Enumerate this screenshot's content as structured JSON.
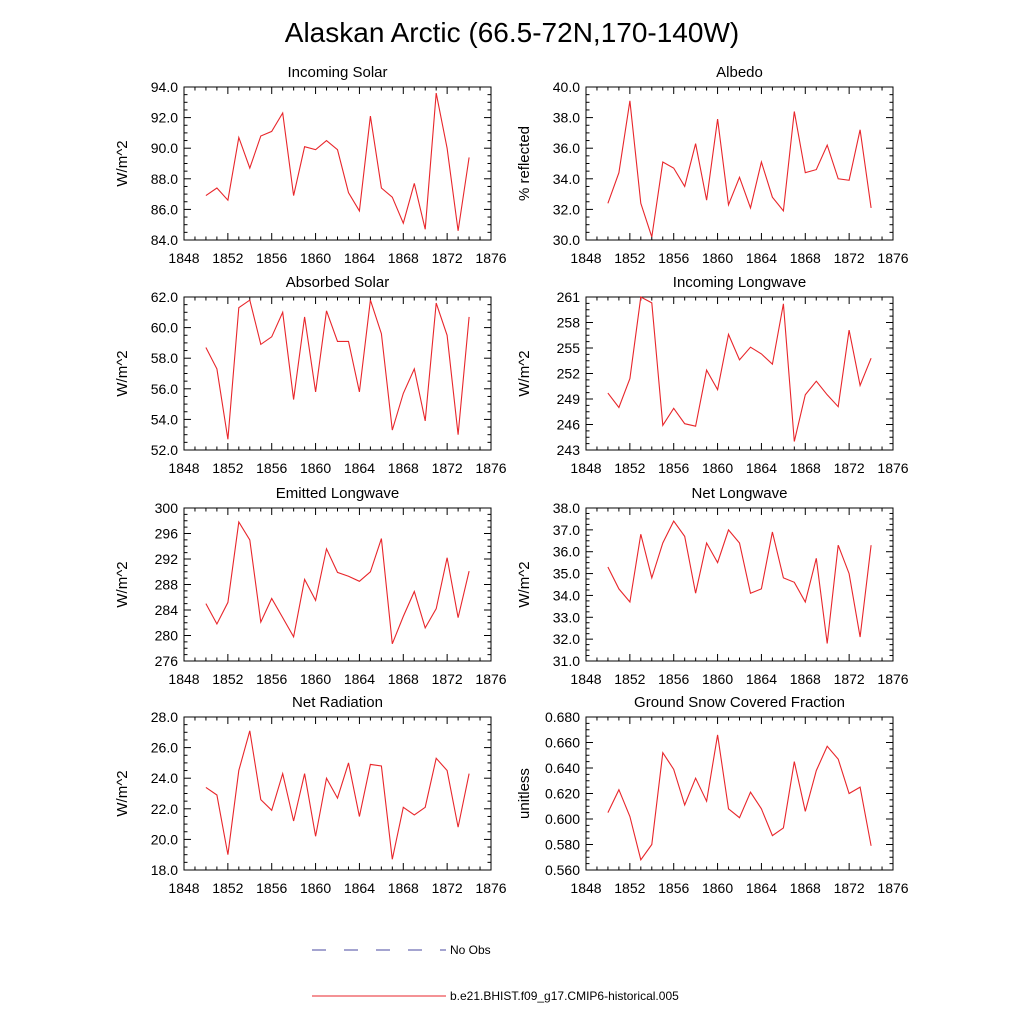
{
  "title": "Alaskan Arctic (66.5-72N,170-140W)",
  "legend": {
    "entries": [
      {
        "label": "No Obs",
        "style": "dashed",
        "color": "#4a4aa0"
      },
      {
        "label": "b.e21.BHIST.f09_g17.CMIP6-historical.005",
        "style": "solid",
        "color": "#e8262b"
      }
    ]
  },
  "chart_data": [
    {
      "type": "line",
      "title": "Incoming Solar",
      "ylabel": "W/m^2",
      "xlim": [
        1848,
        1876
      ],
      "xticks": [
        1848,
        1852,
        1856,
        1860,
        1864,
        1868,
        1872,
        1876
      ],
      "ylim": [
        84,
        94
      ],
      "yticks": [
        "84.0",
        "86.0",
        "88.0",
        "90.0",
        "92.0",
        "94.0"
      ],
      "x": [
        1850,
        1851,
        1852,
        1853,
        1854,
        1855,
        1856,
        1857,
        1858,
        1859,
        1860,
        1861,
        1862,
        1863,
        1864,
        1865,
        1866,
        1867,
        1868,
        1869,
        1870,
        1871,
        1872,
        1873,
        1874
      ],
      "values": [
        86.9,
        87.4,
        86.6,
        90.7,
        88.7,
        90.8,
        91.1,
        92.3,
        86.9,
        90.1,
        89.9,
        90.5,
        89.9,
        87.1,
        85.9,
        92.1,
        87.4,
        86.8,
        85.1,
        87.7,
        84.7,
        93.6,
        90.0,
        84.6,
        89.4
      ],
      "color": "#e8262b"
    },
    {
      "type": "line",
      "title": "Albedo",
      "ylabel": "% reflected",
      "xlim": [
        1848,
        1876
      ],
      "xticks": [
        1848,
        1852,
        1856,
        1860,
        1864,
        1868,
        1872,
        1876
      ],
      "ylim": [
        30,
        40
      ],
      "yticks": [
        "30.0",
        "32.0",
        "34.0",
        "36.0",
        "38.0",
        "40.0"
      ],
      "x": [
        1850,
        1851,
        1852,
        1853,
        1854,
        1855,
        1856,
        1857,
        1858,
        1859,
        1860,
        1861,
        1862,
        1863,
        1864,
        1865,
        1866,
        1867,
        1868,
        1869,
        1870,
        1871,
        1872,
        1873,
        1874
      ],
      "values": [
        32.4,
        34.4,
        39.1,
        32.4,
        30.2,
        35.1,
        34.7,
        33.5,
        36.3,
        32.6,
        37.9,
        32.3,
        34.1,
        32.1,
        35.1,
        32.8,
        31.9,
        38.4,
        34.4,
        34.6,
        36.2,
        34.0,
        33.9,
        37.2,
        32.1
      ],
      "color": "#e8262b"
    },
    {
      "type": "line",
      "title": "Absorbed Solar",
      "ylabel": "W/m^2",
      "xlim": [
        1848,
        1876
      ],
      "xticks": [
        1848,
        1852,
        1856,
        1860,
        1864,
        1868,
        1872,
        1876
      ],
      "ylim": [
        52,
        62
      ],
      "yticks": [
        "52.0",
        "54.0",
        "56.0",
        "58.0",
        "60.0",
        "62.0"
      ],
      "x": [
        1850,
        1851,
        1852,
        1853,
        1854,
        1855,
        1856,
        1857,
        1858,
        1859,
        1860,
        1861,
        1862,
        1863,
        1864,
        1865,
        1866,
        1867,
        1868,
        1869,
        1870,
        1871,
        1872,
        1873,
        1874
      ],
      "values": [
        58.7,
        57.3,
        52.7,
        61.3,
        61.8,
        58.9,
        59.4,
        61.0,
        55.3,
        60.7,
        55.8,
        61.1,
        59.1,
        59.1,
        55.8,
        61.8,
        59.6,
        53.3,
        55.7,
        57.3,
        53.9,
        61.6,
        59.5,
        53.0,
        60.7
      ],
      "color": "#e8262b"
    },
    {
      "type": "line",
      "title": "Incoming Longwave",
      "ylabel": "W/m^2",
      "xlim": [
        1848,
        1876
      ],
      "xticks": [
        1848,
        1852,
        1856,
        1860,
        1864,
        1868,
        1872,
        1876
      ],
      "ylim": [
        243,
        261
      ],
      "yticks": [
        "243",
        "246",
        "249",
        "252",
        "255",
        "258",
        "261"
      ],
      "x": [
        1850,
        1851,
        1852,
        1853,
        1854,
        1855,
        1856,
        1857,
        1858,
        1859,
        1860,
        1861,
        1862,
        1863,
        1864,
        1865,
        1866,
        1867,
        1868,
        1869,
        1870,
        1871,
        1872,
        1873,
        1874
      ],
      "values": [
        249.7,
        248.0,
        251.4,
        261.0,
        260.3,
        245.9,
        247.9,
        246.1,
        245.8,
        252.4,
        250.1,
        256.6,
        253.6,
        255.1,
        254.3,
        253.1,
        260.2,
        244.0,
        249.5,
        251.1,
        249.5,
        248.1,
        257.1,
        250.6,
        253.8
      ],
      "color": "#e8262b"
    },
    {
      "type": "line",
      "title": "Emitted Longwave",
      "ylabel": "W/m^2",
      "xlim": [
        1848,
        1876
      ],
      "xticks": [
        1848,
        1852,
        1856,
        1860,
        1864,
        1868,
        1872,
        1876
      ],
      "ylim": [
        276,
        300
      ],
      "yticks": [
        "276",
        "280",
        "284",
        "288",
        "292",
        "296",
        "300"
      ],
      "x": [
        1850,
        1851,
        1852,
        1853,
        1854,
        1855,
        1856,
        1857,
        1858,
        1859,
        1860,
        1861,
        1862,
        1863,
        1864,
        1865,
        1866,
        1867,
        1868,
        1869,
        1870,
        1871,
        1872,
        1873,
        1874
      ],
      "values": [
        285.0,
        281.8,
        285.2,
        297.8,
        295.0,
        282.1,
        285.8,
        282.8,
        279.8,
        288.8,
        285.5,
        293.6,
        289.9,
        289.3,
        288.5,
        290.0,
        295.2,
        278.7,
        283.0,
        286.9,
        281.2,
        284.2,
        292.2,
        282.8,
        290.1
      ],
      "color": "#e8262b"
    },
    {
      "type": "line",
      "title": "Net Longwave",
      "ylabel": "W/m^2",
      "xlim": [
        1848,
        1876
      ],
      "xticks": [
        1848,
        1852,
        1856,
        1860,
        1864,
        1868,
        1872,
        1876
      ],
      "ylim": [
        31,
        38
      ],
      "yticks": [
        "31.0",
        "32.0",
        "33.0",
        "34.0",
        "35.0",
        "36.0",
        "37.0",
        "38.0"
      ],
      "x": [
        1850,
        1851,
        1852,
        1853,
        1854,
        1855,
        1856,
        1857,
        1858,
        1859,
        1860,
        1861,
        1862,
        1863,
        1864,
        1865,
        1866,
        1867,
        1868,
        1869,
        1870,
        1871,
        1872,
        1873,
        1874
      ],
      "values": [
        35.3,
        34.3,
        33.7,
        36.8,
        34.8,
        36.4,
        37.4,
        36.7,
        34.1,
        36.4,
        35.5,
        37.0,
        36.4,
        34.1,
        34.3,
        36.9,
        34.8,
        34.6,
        33.7,
        35.7,
        31.8,
        36.3,
        35.0,
        32.1,
        36.3
      ],
      "color": "#e8262b"
    },
    {
      "type": "line",
      "title": "Net Radiation",
      "ylabel": "W/m^2",
      "xlim": [
        1848,
        1876
      ],
      "xticks": [
        1848,
        1852,
        1856,
        1860,
        1864,
        1868,
        1872,
        1876
      ],
      "ylim": [
        18,
        28
      ],
      "yticks": [
        "18.0",
        "20.0",
        "22.0",
        "24.0",
        "26.0",
        "28.0"
      ],
      "x": [
        1850,
        1851,
        1852,
        1853,
        1854,
        1855,
        1856,
        1857,
        1858,
        1859,
        1860,
        1861,
        1862,
        1863,
        1864,
        1865,
        1866,
        1867,
        1868,
        1869,
        1870,
        1871,
        1872,
        1873,
        1874
      ],
      "values": [
        23.4,
        22.9,
        19.0,
        24.5,
        27.1,
        22.6,
        21.9,
        24.3,
        21.2,
        24.3,
        20.2,
        24.0,
        22.7,
        25.0,
        21.5,
        24.9,
        24.8,
        18.7,
        22.1,
        21.6,
        22.1,
        25.3,
        24.5,
        20.8,
        24.3
      ],
      "color": "#e8262b"
    },
    {
      "type": "line",
      "title": "Ground Snow Covered Fraction",
      "ylabel": "unitless",
      "xlim": [
        1848,
        1876
      ],
      "xticks": [
        1848,
        1852,
        1856,
        1860,
        1864,
        1868,
        1872,
        1876
      ],
      "ylim": [
        0.56,
        0.68
      ],
      "yticks": [
        "0.560",
        "0.580",
        "0.600",
        "0.620",
        "0.640",
        "0.660",
        "0.680"
      ],
      "x": [
        1850,
        1851,
        1852,
        1853,
        1854,
        1855,
        1856,
        1857,
        1858,
        1859,
        1860,
        1861,
        1862,
        1863,
        1864,
        1865,
        1866,
        1867,
        1868,
        1869,
        1870,
        1871,
        1872,
        1873,
        1874
      ],
      "values": [
        0.605,
        0.623,
        0.602,
        0.568,
        0.58,
        0.652,
        0.639,
        0.611,
        0.632,
        0.614,
        0.666,
        0.608,
        0.601,
        0.621,
        0.608,
        0.587,
        0.593,
        0.645,
        0.606,
        0.638,
        0.657,
        0.647,
        0.62,
        0.625,
        0.579
      ],
      "color": "#e8262b"
    }
  ]
}
